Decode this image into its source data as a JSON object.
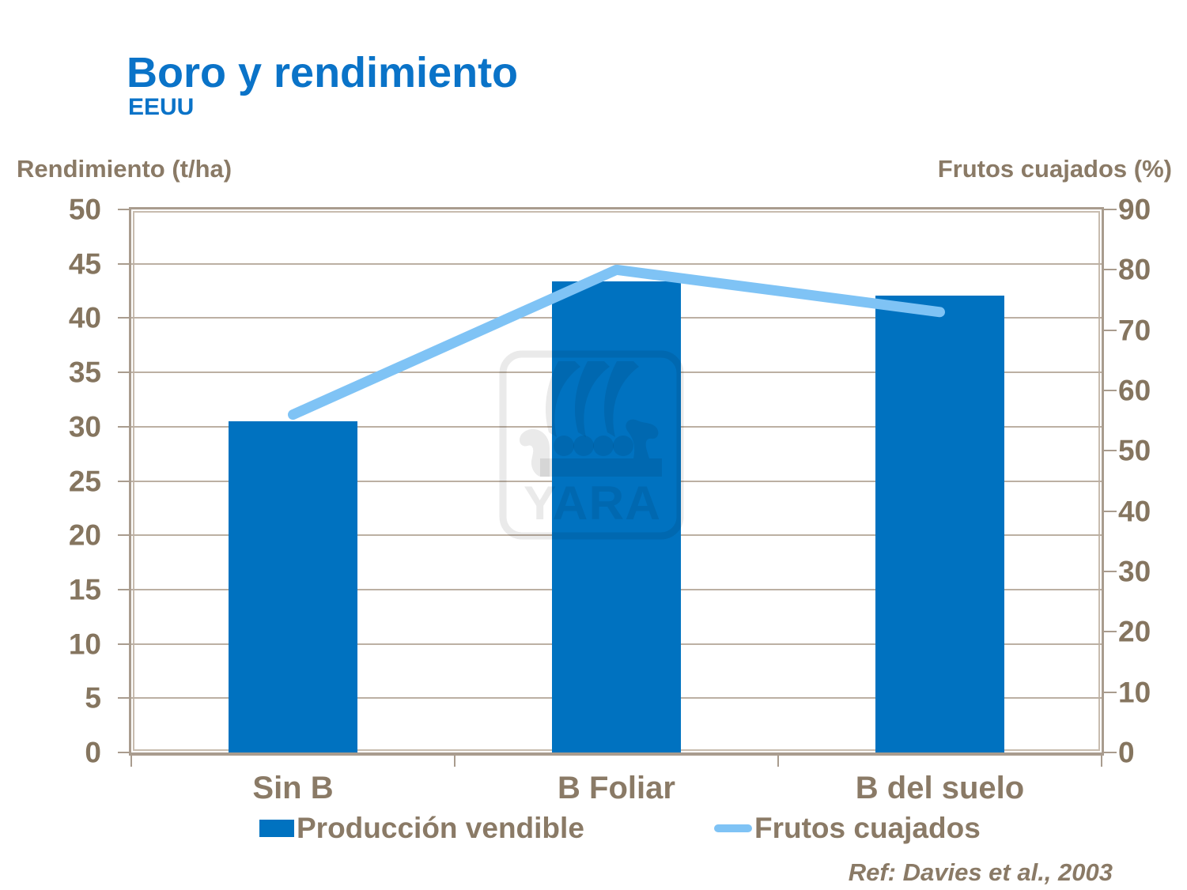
{
  "header": {
    "title": "Boro y rendimiento",
    "subtitle": "EEUU"
  },
  "chart_data": {
    "type": "bar",
    "subtype": "combo-bar-line-dual-axis",
    "categories": [
      "Sin B",
      "B Foliar",
      "B del suelo"
    ],
    "series": [
      {
        "name": "Producción vendible",
        "type": "bar",
        "axis": "left",
        "values": [
          30.5,
          43.4,
          42.1
        ],
        "color": "#0072C0"
      },
      {
        "name": "Frutos cuajados",
        "type": "line",
        "axis": "right",
        "values": [
          56,
          80,
          73
        ],
        "color": "#7FC3F5"
      }
    ],
    "left_axis": {
      "title": "Rendimiento (t/ha)",
      "min": 0,
      "max": 50,
      "step": 5
    },
    "right_axis": {
      "title": "Frutos cuajados (%)",
      "min": 0,
      "max": 90,
      "step": 10
    },
    "grid": "horizontal gridlines every 5 t/ha",
    "legend_position": "bottom"
  },
  "watermark": {
    "name": "yara-logo",
    "text": "YARA"
  },
  "footer": {
    "reference": "Ref: Davies et al., 2003"
  },
  "palette": {
    "title_blue": "#0A73C8",
    "bar_blue": "#0072C0",
    "line_blue": "#7FC3F5",
    "text_brown": "#8A7A66",
    "number_brown": "#85755F",
    "grid_tan": "#BCB0A3",
    "frame_tan": "#A99C8E",
    "background": "#FFFFFF"
  }
}
